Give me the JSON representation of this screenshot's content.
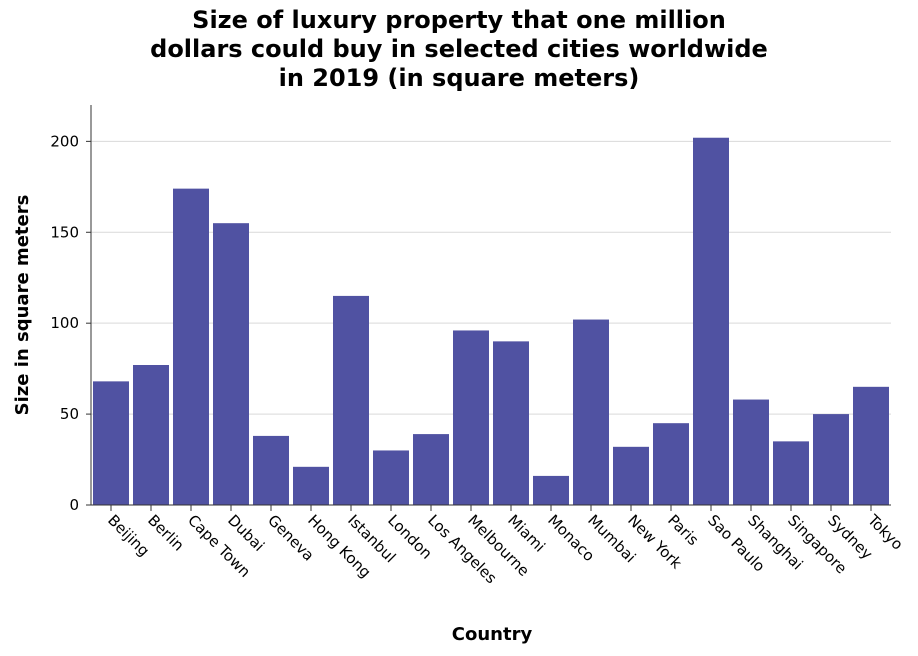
{
  "chart_data": {
    "type": "bar",
    "title_lines": [
      "Size of luxury property that one million",
      "dollars could buy in selected cities worldwide",
      "in 2019 (in square meters)"
    ],
    "xlabel": "Country",
    "ylabel": "Size in square meters",
    "ylim": [
      0,
      220
    ],
    "yticks": [
      0,
      50,
      100,
      150,
      200
    ],
    "grid": true,
    "bar_color": "#5052a2",
    "categories": [
      "Beijing",
      "Berlin",
      "Cape Town",
      "Dubai",
      "Geneva",
      "Hong Kong",
      "Istanbul",
      "London",
      "Los Angeles",
      "Melbourne",
      "Miami",
      "Monaco",
      "Mumbai",
      "New York",
      "Paris",
      "Sao Paulo",
      "Shanghai",
      "Singapore",
      "Sydney",
      "Tokyo"
    ],
    "values": [
      68,
      77,
      174,
      155,
      38,
      21,
      115,
      30,
      39,
      96,
      90,
      16,
      102,
      32,
      45,
      202,
      58,
      35,
      50,
      65
    ]
  }
}
